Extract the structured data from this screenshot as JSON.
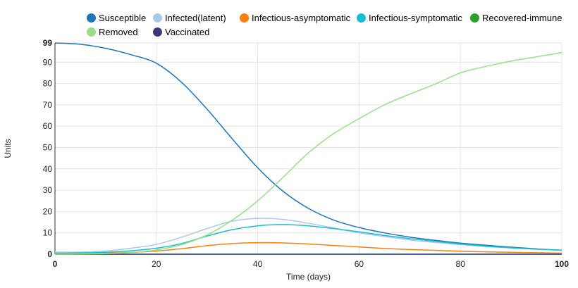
{
  "chart_data": {
    "type": "line",
    "title": "",
    "xlabel": "Time (days)",
    "ylabel": "Units",
    "xlim": [
      0,
      100
    ],
    "ylim": [
      0,
      99
    ],
    "x_ticks": [
      0,
      20,
      40,
      60,
      80,
      100
    ],
    "y_ticks": [
      0,
      10,
      20,
      30,
      40,
      50,
      60,
      70,
      80,
      90,
      99
    ],
    "grid": true,
    "legend_position": "top",
    "x": [
      0,
      5,
      10,
      15,
      20,
      25,
      30,
      35,
      40,
      45,
      50,
      55,
      60,
      65,
      70,
      75,
      80,
      85,
      90,
      95,
      100
    ],
    "series": [
      {
        "name": "Susceptible",
        "color": "#1f77b4",
        "values": [
          99,
          98.4,
          96.5,
          93.5,
          89.5,
          80.5,
          68,
          54,
          40.5,
          29.5,
          21.5,
          16,
          12.5,
          10,
          8,
          6.5,
          5.2,
          4.2,
          3.3,
          2.5,
          1.8
        ]
      },
      {
        "name": "Infected(latent)",
        "color": "#aec7e8",
        "values": [
          1,
          1,
          1.5,
          2.8,
          4.6,
          8,
          12,
          15.5,
          16.8,
          16.3,
          14.5,
          12.3,
          10,
          8.3,
          6.7,
          5.5,
          4.5,
          3.6,
          2.9,
          2.3,
          1.8
        ]
      },
      {
        "name": "Infectious-asymptomatic",
        "color": "#ff7f0e",
        "values": [
          0.2,
          0.3,
          0.5,
          0.9,
          1.5,
          2.6,
          4,
          5,
          5.4,
          5.3,
          4.8,
          4.1,
          3.4,
          2.7,
          2.2,
          1.8,
          1.4,
          1.1,
          0.9,
          0.7,
          0.5
        ]
      },
      {
        "name": "Infectious-symptomatic",
        "color": "#17becf",
        "values": [
          0.5,
          0.6,
          0.9,
          1.6,
          2.8,
          5,
          8.5,
          11.5,
          13.3,
          13.9,
          13.3,
          12,
          10.5,
          8.8,
          7.3,
          6,
          4.8,
          3.8,
          3,
          2.4,
          1.9
        ]
      },
      {
        "name": "Recovered-immune",
        "color": "#2ca02c",
        "values": [
          0,
          0,
          0,
          0,
          0,
          0,
          0,
          0,
          0,
          0,
          0,
          0,
          0,
          0,
          0,
          0,
          0,
          0,
          0,
          0,
          0
        ]
      },
      {
        "name": "Removed",
        "color": "#98df8a",
        "values": [
          0,
          0.1,
          0.3,
          0.8,
          2,
          4.5,
          9,
          16,
          25,
          36,
          47.5,
          56.5,
          63.5,
          70,
          75,
          79.7,
          85,
          88,
          90.5,
          92.5,
          94.5
        ]
      },
      {
        "name": "Vaccinated",
        "color": "#393b79",
        "values": [
          0,
          0,
          0,
          0,
          0,
          0,
          0,
          0,
          0,
          0,
          0,
          0,
          0,
          0,
          0,
          0,
          0,
          0,
          0,
          0,
          0
        ]
      }
    ]
  }
}
